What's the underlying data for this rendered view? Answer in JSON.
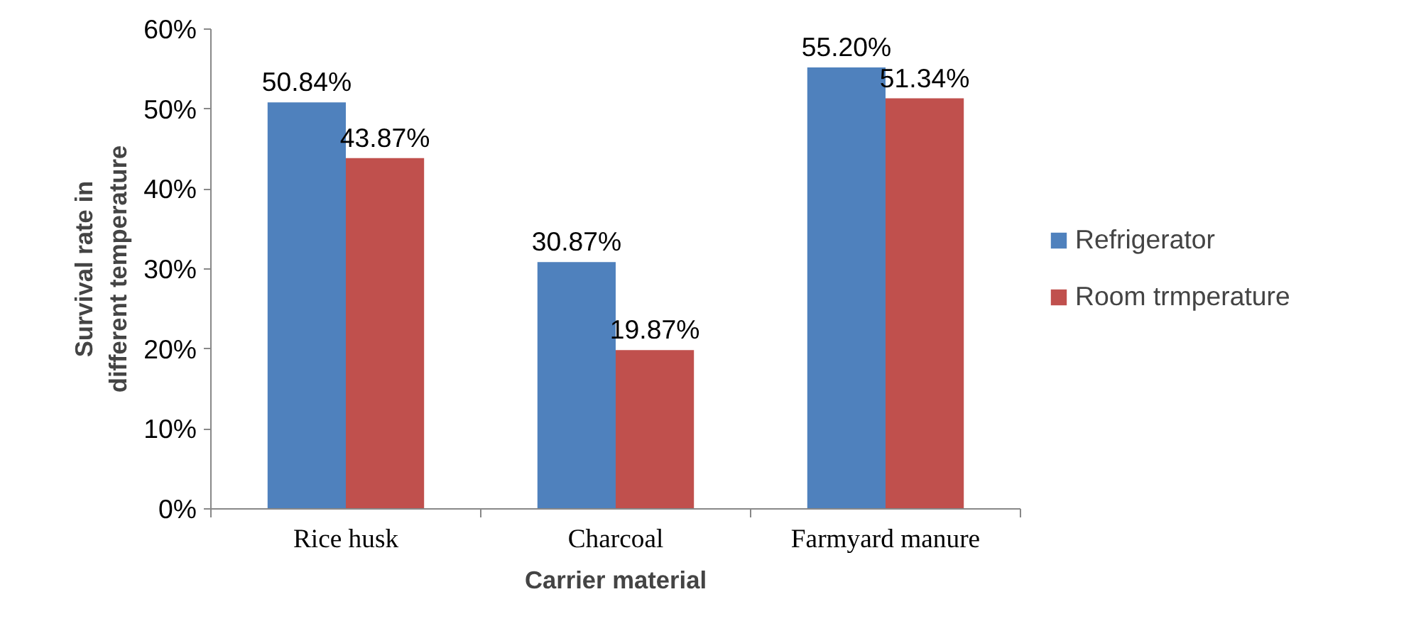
{
  "chart_data": {
    "type": "bar",
    "xlabel": "Carrier material",
    "ylabel": "Survival rate in different temperature",
    "categories": [
      "Rice husk",
      "Charcoal",
      "Farmyard manure"
    ],
    "series": [
      {
        "name": "Refrigerator",
        "color": "#4f81bd",
        "values": [
          50.84,
          30.87,
          55.2
        ],
        "value_labels": [
          "50.84%",
          "30.87%",
          "55.20%"
        ]
      },
      {
        "name": "Room trmperature",
        "color": "#c0504d",
        "values": [
          43.87,
          19.87,
          51.34
        ],
        "value_labels": [
          "43.87%",
          "19.87%",
          "51.34%"
        ]
      }
    ],
    "ylim": [
      0,
      60
    ],
    "yticks": [
      {
        "value": 0,
        "label": "0%"
      },
      {
        "value": 10,
        "label": "10%"
      },
      {
        "value": 20,
        "label": "20%"
      },
      {
        "value": 30,
        "label": "30%"
      },
      {
        "value": 40,
        "label": "40%"
      },
      {
        "value": 50,
        "label": "50%"
      },
      {
        "value": 60,
        "label": "60%"
      }
    ],
    "legend": "right"
  }
}
